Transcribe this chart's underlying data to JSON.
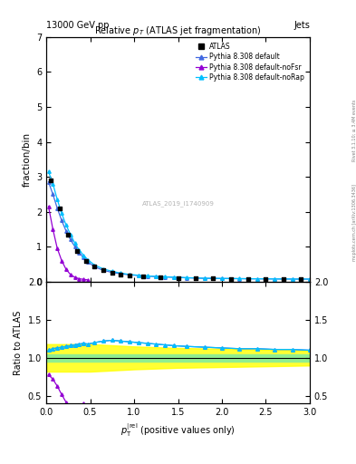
{
  "title_top": "13000 GeV pp",
  "title_right": "Jets",
  "plot_title": "Relative $p_T$ (ATLAS jet fragmentation)",
  "ylabel_main": "fraction/bin",
  "ylabel_ratio": "Ratio to ATLAS",
  "watermark": "ATLAS_2019_I1740909",
  "atlas_data_x": [
    0.05,
    0.15,
    0.25,
    0.35,
    0.45,
    0.55,
    0.65,
    0.75,
    0.85,
    0.95,
    1.1,
    1.3,
    1.5,
    1.7,
    1.9,
    2.1,
    2.3,
    2.5,
    2.7,
    2.9
  ],
  "atlas_data_y": [
    2.9,
    2.1,
    1.35,
    0.88,
    0.6,
    0.43,
    0.32,
    0.26,
    0.21,
    0.18,
    0.14,
    0.12,
    0.1,
    0.09,
    0.085,
    0.08,
    0.075,
    0.07,
    0.068,
    0.065
  ],
  "pythia_default_x": [
    0.025,
    0.075,
    0.125,
    0.175,
    0.225,
    0.275,
    0.325,
    0.375,
    0.425,
    0.475,
    0.55,
    0.65,
    0.75,
    0.85,
    0.95,
    1.05,
    1.15,
    1.25,
    1.35,
    1.45,
    1.6,
    1.8,
    2.0,
    2.2,
    2.4,
    2.6,
    2.8,
    3.0
  ],
  "pythia_default_y": [
    2.85,
    2.5,
    2.1,
    1.75,
    1.45,
    1.2,
    1.0,
    0.82,
    0.68,
    0.56,
    0.42,
    0.32,
    0.26,
    0.22,
    0.19,
    0.17,
    0.155,
    0.14,
    0.13,
    0.12,
    0.105,
    0.09,
    0.085,
    0.08,
    0.076,
    0.073,
    0.07,
    0.068
  ],
  "pythia_noFSR_x": [
    0.025,
    0.075,
    0.125,
    0.175,
    0.225,
    0.275,
    0.325,
    0.375,
    0.425,
    0.475
  ],
  "pythia_noFSR_y": [
    2.15,
    1.5,
    0.95,
    0.6,
    0.35,
    0.2,
    0.12,
    0.08,
    0.06,
    0.045
  ],
  "pythia_noRap_x": [
    0.025,
    0.075,
    0.125,
    0.175,
    0.225,
    0.275,
    0.325,
    0.375,
    0.425,
    0.475,
    0.55,
    0.65,
    0.75,
    0.85,
    0.95,
    1.05,
    1.15,
    1.25,
    1.35,
    1.45,
    1.6,
    1.8,
    2.0,
    2.2,
    2.4,
    2.6,
    2.8,
    3.0
  ],
  "pythia_noRap_y": [
    3.15,
    2.8,
    2.35,
    1.95,
    1.62,
    1.35,
    1.1,
    0.9,
    0.75,
    0.62,
    0.47,
    0.36,
    0.29,
    0.24,
    0.2,
    0.18,
    0.16,
    0.145,
    0.135,
    0.125,
    0.11,
    0.095,
    0.088,
    0.082,
    0.078,
    0.074,
    0.071,
    0.069
  ],
  "ratio_default_x": [
    0.025,
    0.075,
    0.125,
    0.175,
    0.225,
    0.275,
    0.325,
    0.375,
    0.425,
    0.475,
    0.55,
    0.65,
    0.75,
    0.85,
    0.95,
    1.05,
    1.15,
    1.25,
    1.35,
    1.45,
    1.6,
    1.8,
    2.0,
    2.2,
    2.4,
    2.6,
    2.8,
    3.0
  ],
  "ratio_default_y": [
    1.1,
    1.12,
    1.13,
    1.14,
    1.15,
    1.16,
    1.17,
    1.18,
    1.19,
    1.18,
    1.2,
    1.22,
    1.23,
    1.22,
    1.21,
    1.2,
    1.19,
    1.18,
    1.17,
    1.16,
    1.15,
    1.14,
    1.13,
    1.12,
    1.12,
    1.11,
    1.11,
    1.1
  ],
  "ratio_noFSR_x": [
    0.025,
    0.075,
    0.125,
    0.175,
    0.225,
    0.275,
    0.325,
    0.375,
    0.425
  ],
  "ratio_noFSR_y": [
    0.78,
    0.72,
    0.63,
    0.52,
    0.42,
    0.35,
    0.3,
    0.28,
    0.4
  ],
  "ratio_noRap_x": [
    0.025,
    0.075,
    0.125,
    0.175,
    0.225,
    0.275,
    0.325,
    0.375,
    0.425,
    0.475,
    0.55,
    0.65,
    0.75,
    0.85,
    0.95,
    1.05,
    1.15,
    1.25,
    1.35,
    1.45,
    1.6,
    1.8,
    2.0,
    2.2,
    2.4,
    2.6,
    2.8,
    3.0
  ],
  "ratio_noRap_y": [
    1.1,
    1.12,
    1.13,
    1.14,
    1.15,
    1.16,
    1.17,
    1.18,
    1.19,
    1.18,
    1.2,
    1.22,
    1.23,
    1.22,
    1.21,
    1.2,
    1.19,
    1.18,
    1.17,
    1.16,
    1.15,
    1.14,
    1.13,
    1.12,
    1.12,
    1.11,
    1.11,
    1.1
  ],
  "color_default": "#4169E1",
  "color_noFSR": "#9400D3",
  "color_noRap": "#00BFFF",
  "color_atlas": "black",
  "green_band_low": 0.95,
  "green_band_high": 1.05,
  "yellow_band_x": [
    0.0,
    0.5,
    1.0,
    1.5,
    2.0,
    2.5,
    3.0
  ],
  "yellow_band_low": [
    0.82,
    0.82,
    0.85,
    0.87,
    0.88,
    0.89,
    0.9
  ],
  "yellow_band_high": [
    1.18,
    1.18,
    1.15,
    1.13,
    1.12,
    1.11,
    1.1
  ],
  "xlim": [
    0,
    3
  ],
  "ylim_main": [
    0,
    7
  ],
  "ylim_ratio": [
    0.4,
    2.0
  ],
  "rivet_label": "Rivet 3.1.10; ≥ 3.4M events",
  "mcplots_label": "mcplots.cern.ch [arXiv:1306.3436]"
}
